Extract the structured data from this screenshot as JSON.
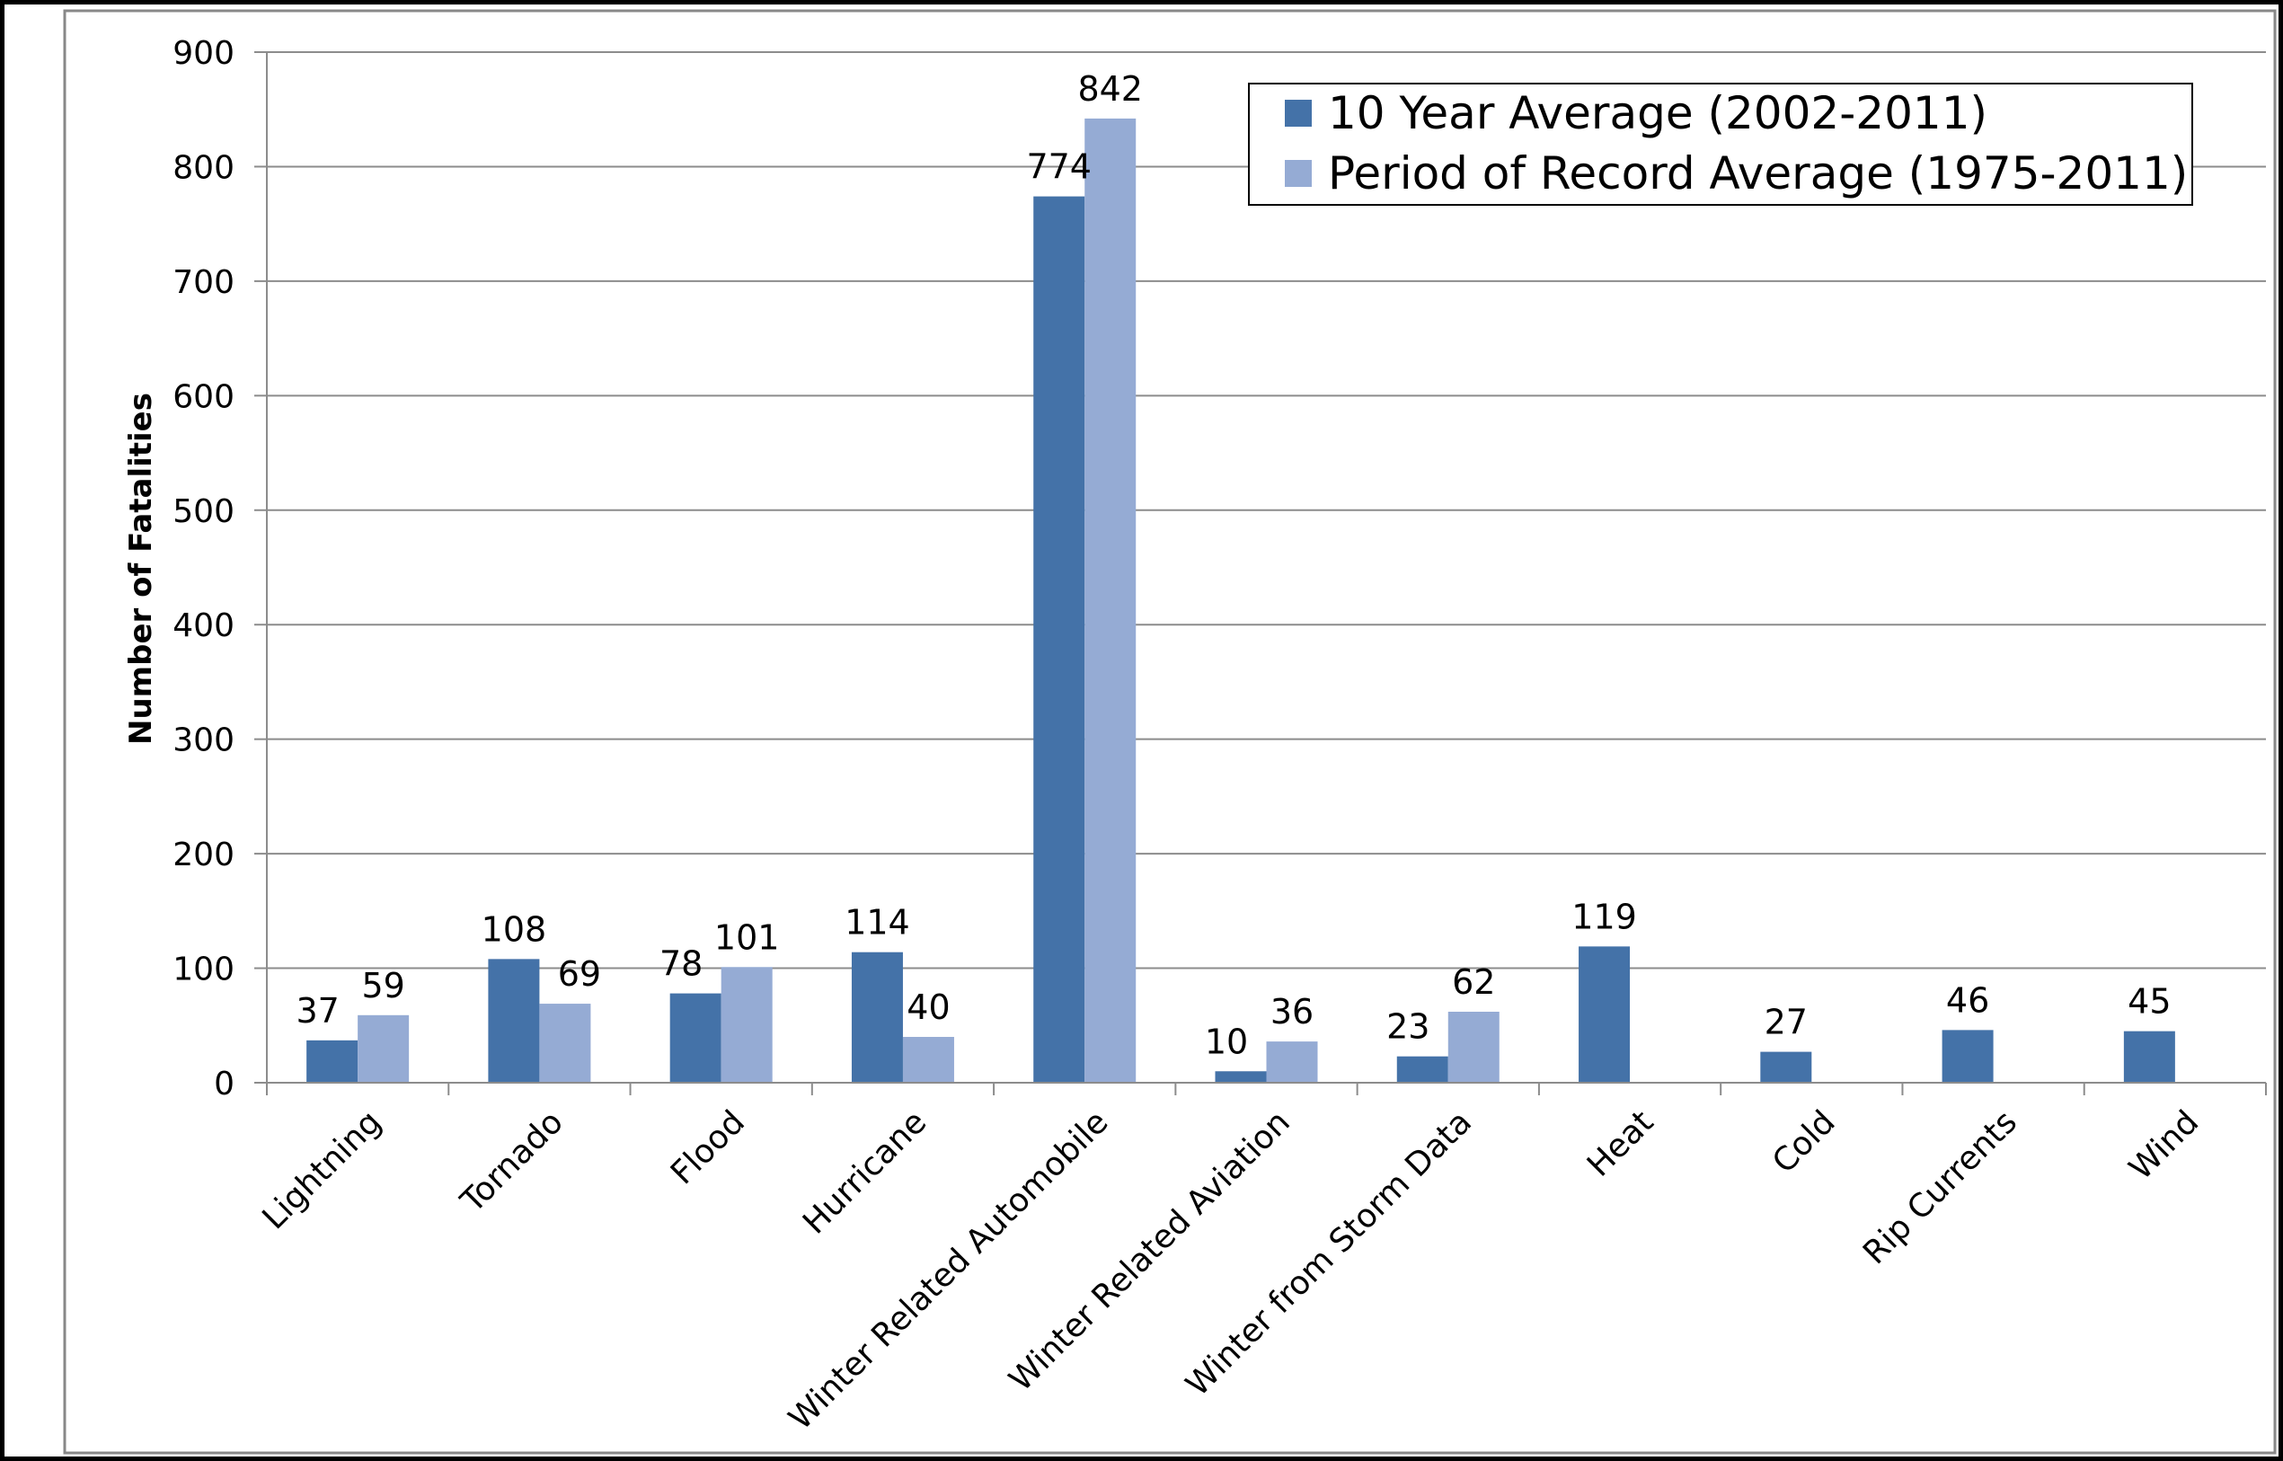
{
  "chart_data": {
    "type": "bar",
    "title": "",
    "xlabel": "",
    "ylabel": "Number of Fatalities",
    "ylim": [
      0,
      900
    ],
    "yticks": [
      0,
      100,
      200,
      300,
      400,
      500,
      600,
      700,
      800,
      900
    ],
    "grid": true,
    "legend_position": "top-right",
    "categories": [
      "Lightning",
      "Tornado",
      "Flood",
      "Hurricane",
      "Winter Related Automobile",
      "Winter Related Aviation",
      "Winter from Storm Data",
      "Heat",
      "Cold",
      "Rip Currents",
      "Wind"
    ],
    "series": [
      {
        "name": "10 Year Average (2002-2011)",
        "color": "#4472a8",
        "values": [
          37,
          108,
          78,
          114,
          774,
          10,
          23,
          119,
          27,
          46,
          45
        ]
      },
      {
        "name": "Period of Record Average (1975-2011)",
        "color": "#95abd4",
        "values": [
          59,
          69,
          101,
          40,
          842,
          36,
          62,
          null,
          null,
          null,
          null
        ]
      }
    ]
  }
}
